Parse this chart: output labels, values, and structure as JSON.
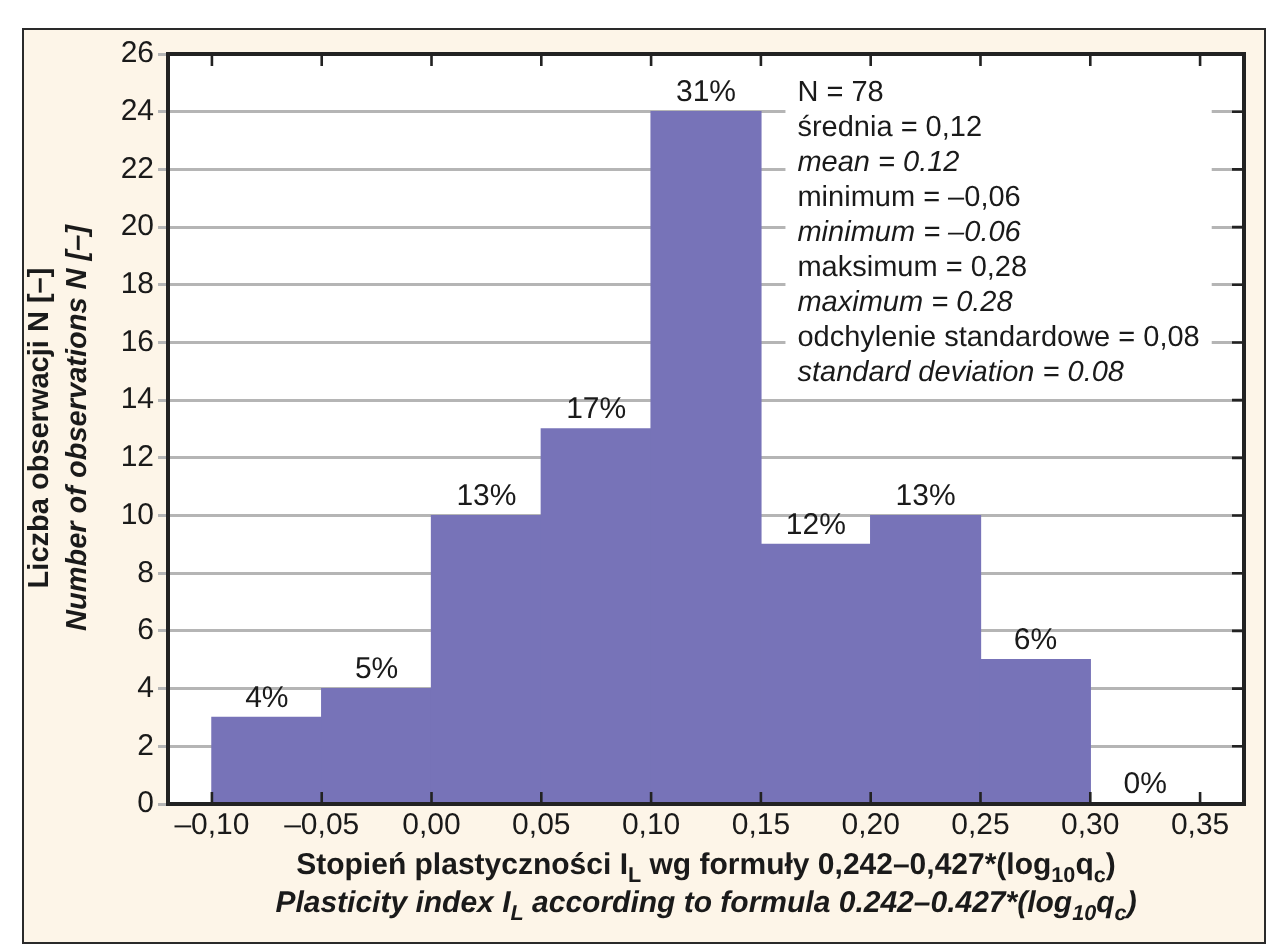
{
  "chart_data": {
    "type": "histogram",
    "bins": [
      -0.1,
      -0.05,
      0.0,
      0.05,
      0.1,
      0.15,
      0.2,
      0.25,
      0.3,
      0.35
    ],
    "values": [
      3,
      4,
      10,
      13,
      24,
      9,
      10,
      5,
      0
    ],
    "color": "#7773b8",
    "xlabel": "Stopień plastyczności I$_{L}$ wg formuły 0,242–0,427*(log$_{10}$q$_{c}$)\nPlasticity index I$_{L}$ according to formula 0.242–0.427*(log$_{10}$q$_{c}$)",
    "ylabel": "Liczba obserwacji N [–]\nNumber of observations N [–]",
    "xlim": [
      -0.12,
      0.37
    ],
    "xticks": [
      {
        "value": -0.1,
        "label": "–0,10"
      },
      {
        "value": -0.05,
        "label": "–0,05"
      },
      {
        "value": 0.0,
        "label": "0,00"
      },
      {
        "value": 0.05,
        "label": "0,05"
      },
      {
        "value": 0.1,
        "label": "0,10"
      },
      {
        "value": 0.15,
        "label": "0,15"
      },
      {
        "value": 0.2,
        "label": "0,20"
      },
      {
        "value": 0.25,
        "label": "0,25"
      },
      {
        "value": 0.3,
        "label": "0,30"
      },
      {
        "value": 0.35,
        "label": "0,35"
      }
    ],
    "ylim": [
      0,
      26
    ],
    "yticks": [
      0,
      2,
      4,
      6,
      8,
      10,
      12,
      14,
      16,
      18,
      20,
      22,
      24,
      26
    ],
    "grid": "y",
    "annotations": [
      "N = 78",
      "średnia = 0,12",
      "mean = 0.12",
      "minimum = –0,06",
      "minimum = –0.06",
      "maksimum = 0,28",
      "maximum = 0.28",
      "odchylenie standardowe = 0,08",
      "standard deviation = 0.08",
      {
        "text": "4%",
        "x": -0.075,
        "y": 3
      },
      {
        "text": "5%",
        "x": -0.025,
        "y": 4
      },
      {
        "text": "13%",
        "x": 0.025,
        "y": 10
      },
      {
        "text": "17%",
        "x": 0.075,
        "y": 13
      },
      {
        "text": "31%",
        "x": 0.125,
        "y": 24
      },
      {
        "text": "12%",
        "x": 0.175,
        "y": 9
      },
      {
        "text": "13%",
        "x": 0.225,
        "y": 10
      },
      {
        "text": "6%",
        "x": 0.275,
        "y": 5
      },
      {
        "text": "0%",
        "x": 0.325,
        "y": 0
      }
    ]
  }
}
